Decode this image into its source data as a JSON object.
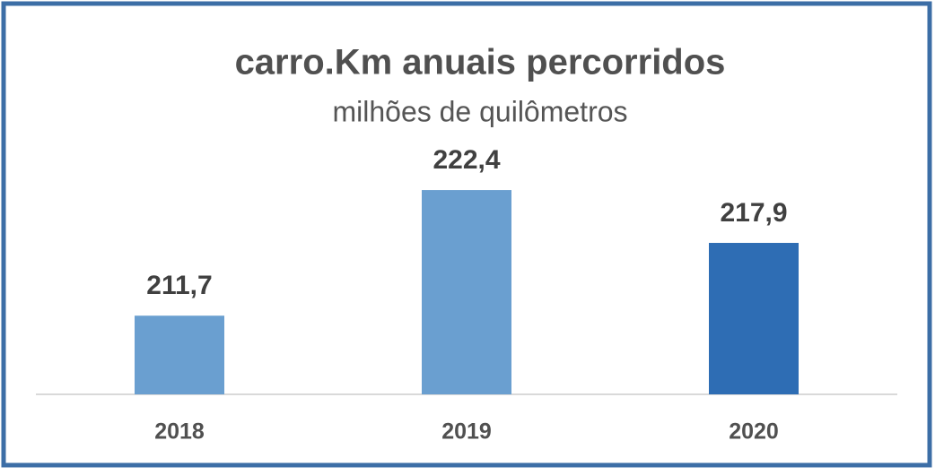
{
  "chart_data": {
    "type": "bar",
    "title": "carro.Km anuais percorridos",
    "subtitle": "milhões de quilômetros",
    "categories": [
      "2018",
      "2019",
      "2020"
    ],
    "values": [
      211.7,
      222.4,
      217.9
    ],
    "value_labels": [
      "211,7",
      "222,4",
      "217,9"
    ],
    "colors": [
      "#6a9fd0",
      "#6a9fd0",
      "#2e6db4"
    ],
    "ylim": [
      205,
      225
    ]
  }
}
